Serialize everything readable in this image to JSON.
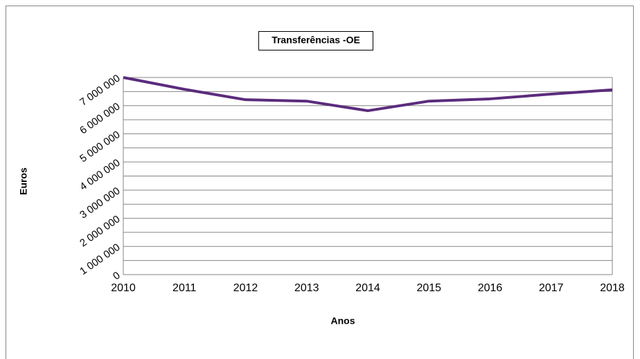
{
  "chart_data": {
    "type": "line",
    "title": "Transferências -OE",
    "x_label": "Anos",
    "y_label": "Euros",
    "categories": [
      "2010",
      "2011",
      "2012",
      "2013",
      "2014",
      "2015",
      "2016",
      "2017",
      "2018"
    ],
    "series": [
      {
        "name": "Transferências -OE",
        "color": "#5b2c7d",
        "values": [
          7000000,
          6580000,
          6210000,
          6160000,
          5820000,
          6160000,
          6240000,
          6410000,
          6560000
        ]
      }
    ],
    "ylim": [
      0,
      7000000
    ],
    "yticks": [
      0,
      {
        "value": 1000000,
        "label": "1 000 000"
      },
      {
        "value": 2000000,
        "label": "2 000 000"
      },
      {
        "value": 3000000,
        "label": "3 000 000"
      },
      {
        "value": 4000000,
        "label": "4 000 000"
      },
      {
        "value": 5000000,
        "label": "5 000 000"
      },
      {
        "value": 6000000,
        "label": "6 000 000"
      },
      {
        "value": 7000000,
        "label": "7 000 000"
      }
    ],
    "minor_yticks": [
      500000,
      1500000,
      2500000,
      3500000,
      4500000,
      5500000,
      6500000
    ],
    "grid": true
  }
}
